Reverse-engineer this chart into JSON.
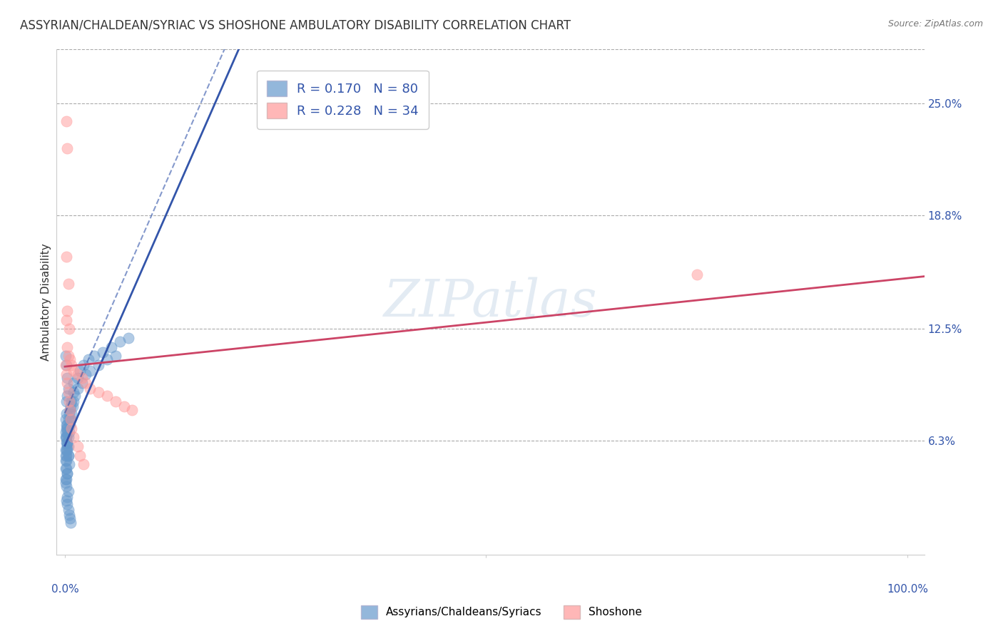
{
  "title": "ASSYRIAN/CHALDEAN/SYRIAC VS SHOSHONE AMBULATORY DISABILITY CORRELATION CHART",
  "source": "Source: ZipAtlas.com",
  "ylabel": "Ambulatory Disability",
  "xlim": [
    0.0,
    1.0
  ],
  "ylim": [
    0.0,
    0.28
  ],
  "yticks": [
    0.063,
    0.125,
    0.188,
    0.25
  ],
  "ytick_labels": [
    "6.3%",
    "12.5%",
    "18.8%",
    "25.0%"
  ],
  "blue_R": 0.17,
  "blue_N": 80,
  "pink_R": 0.228,
  "pink_N": 34,
  "blue_color": "#6699CC",
  "pink_color": "#FF9999",
  "blue_line_color": "#3355AA",
  "pink_line_color": "#CC4466",
  "watermark": "ZIPatlas",
  "legend_blue_label": "R = 0.170   N = 80",
  "legend_pink_label": "R = 0.228   N = 34",
  "bottom_legend_labels": [
    "Assyrians/Chaldeans/Syriacs",
    "Shoshone"
  ],
  "blue_scatter_x": [
    0.002,
    0.003,
    0.001,
    0.002,
    0.004,
    0.005,
    0.003,
    0.006,
    0.007,
    0.002,
    0.001,
    0.002,
    0.003,
    0.004,
    0.001,
    0.002,
    0.003,
    0.001,
    0.002,
    0.003,
    0.005,
    0.004,
    0.003,
    0.002,
    0.001,
    0.003,
    0.004,
    0.006,
    0.008,
    0.01,
    0.012,
    0.015,
    0.02,
    0.025,
    0.03,
    0.04,
    0.05,
    0.06,
    0.002,
    0.001,
    0.002,
    0.003,
    0.001,
    0.002,
    0.003,
    0.004,
    0.002,
    0.001,
    0.003,
    0.002,
    0.001,
    0.002,
    0.004,
    0.003,
    0.002,
    0.003,
    0.004,
    0.005,
    0.006,
    0.007,
    0.01,
    0.015,
    0.018,
    0.022,
    0.028,
    0.035,
    0.045,
    0.055,
    0.065,
    0.075,
    0.001,
    0.002,
    0.003,
    0.004,
    0.005,
    0.006,
    0.007,
    0.008,
    0.009,
    0.01
  ],
  "blue_scatter_y": [
    0.105,
    0.098,
    0.11,
    0.085,
    0.092,
    0.078,
    0.088,
    0.075,
    0.082,
    0.07,
    0.068,
    0.065,
    0.072,
    0.06,
    0.058,
    0.055,
    0.062,
    0.052,
    0.048,
    0.045,
    0.05,
    0.055,
    0.06,
    0.065,
    0.042,
    0.07,
    0.075,
    0.08,
    0.085,
    0.09,
    0.088,
    0.092,
    0.095,
    0.1,
    0.102,
    0.105,
    0.108,
    0.11,
    0.078,
    0.075,
    0.072,
    0.068,
    0.065,
    0.062,
    0.058,
    0.055,
    0.052,
    0.048,
    0.045,
    0.042,
    0.04,
    0.038,
    0.035,
    0.032,
    0.03,
    0.028,
    0.025,
    0.022,
    0.02,
    0.018,
    0.095,
    0.098,
    0.102,
    0.105,
    0.108,
    0.11,
    0.112,
    0.115,
    0.118,
    0.12,
    0.055,
    0.058,
    0.062,
    0.065,
    0.068,
    0.072,
    0.075,
    0.078,
    0.082,
    0.085
  ],
  "pink_scatter_x": [
    0.002,
    0.003,
    0.002,
    0.004,
    0.003,
    0.002,
    0.005,
    0.003,
    0.004,
    0.006,
    0.008,
    0.01,
    0.015,
    0.02,
    0.025,
    0.03,
    0.04,
    0.05,
    0.06,
    0.07,
    0.08,
    0.75,
    0.001,
    0.002,
    0.003,
    0.004,
    0.005,
    0.006,
    0.007,
    0.008,
    0.01,
    0.015,
    0.018,
    0.022
  ],
  "pink_scatter_y": [
    0.24,
    0.225,
    0.165,
    0.15,
    0.135,
    0.13,
    0.125,
    0.115,
    0.11,
    0.108,
    0.105,
    0.102,
    0.1,
    0.098,
    0.095,
    0.092,
    0.09,
    0.088,
    0.085,
    0.082,
    0.08,
    0.155,
    0.105,
    0.1,
    0.095,
    0.09,
    0.085,
    0.08,
    0.075,
    0.07,
    0.065,
    0.06,
    0.055,
    0.05
  ]
}
